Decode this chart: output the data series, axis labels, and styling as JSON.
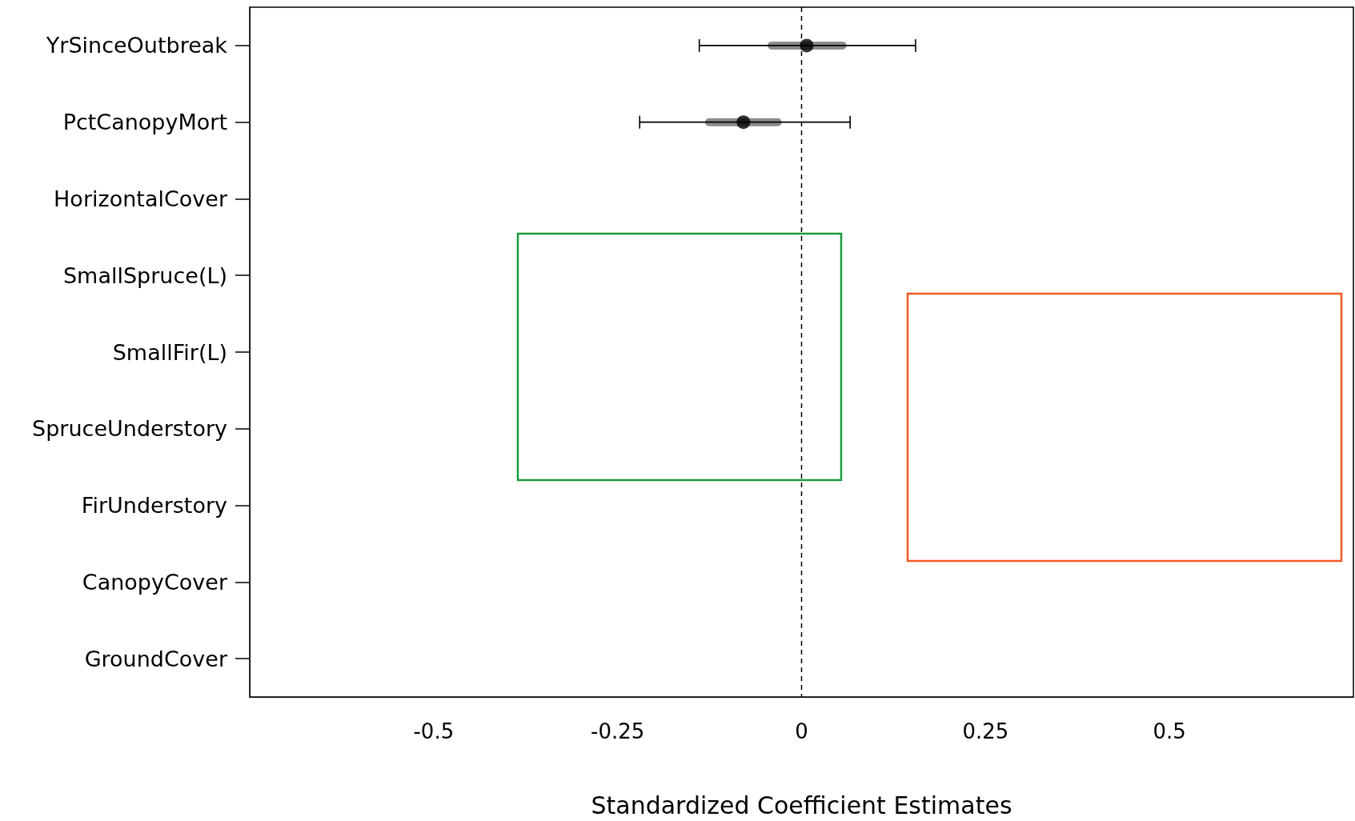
{
  "chart_data": {
    "type": "scatter",
    "orientation": "horizontal",
    "xlabel": "Standardized Coefficient Estimates",
    "categories": [
      "YrSinceOutbreak",
      "PctCanopyMort",
      "HorizontalCover",
      "SmallSpruce(L)",
      "SmallFir(L)",
      "SpruceUnderstory",
      "FirUnderstory",
      "CanopyCover",
      "GroundCover"
    ],
    "series": [
      {
        "type": "bar",
        "color": "#8c8c8c",
        "base": [
          -0.046,
          -0.131,
          null,
          null,
          null,
          null,
          null,
          null,
          null
        ],
        "values": [
          0.107,
          0.104,
          null,
          null,
          null,
          null,
          null,
          null,
          null
        ]
      },
      {
        "color": "#000000",
        "values": [
          0.007,
          -0.079,
          null,
          null,
          null,
          null,
          null,
          null,
          null
        ],
        "errors": [
          [
            -0.139,
            0.155
          ],
          [
            -0.22,
            0.066
          ],
          null,
          null,
          null,
          null,
          null,
          null,
          null
        ]
      }
    ],
    "xlim": [
      -0.75,
      0.75
    ],
    "xticks": [
      -0.5,
      -0.25,
      0,
      0.25,
      0.5
    ],
    "ref_lines": [
      {
        "axis": "x",
        "value": 0,
        "line_style": "dashed",
        "color": "#000000"
      }
    ],
    "grid": false,
    "marker": "circle"
  }
}
